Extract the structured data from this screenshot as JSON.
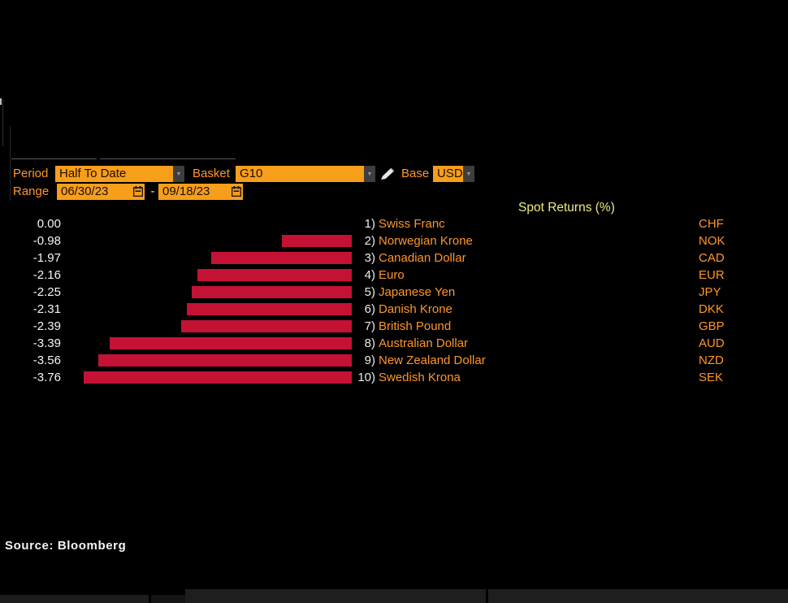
{
  "toolbar": {
    "period_label": "Period",
    "period_value": "Half To Date",
    "basket_label": "Basket",
    "basket_value": "G10",
    "base_label": "Base",
    "base_value": "USD",
    "range_label": "Range",
    "range_start": "06/30/23",
    "range_separator": "-",
    "range_end": "09/18/23"
  },
  "icons": {
    "dropdown_arrow": "▼"
  },
  "chart_data": {
    "type": "bar",
    "orientation": "horizontal",
    "title": "Spot Returns (%)",
    "categories": [
      "Swiss Franc",
      "Norwegian Krone",
      "Canadian Dollar",
      "Euro",
      "Japanese Yen",
      "Danish Krone",
      "British Pound",
      "Australian Dollar",
      "New Zealand Dollar",
      "Swedish Krona"
    ],
    "codes": [
      "CHF",
      "NOK",
      "CAD",
      "EUR",
      "JPY",
      "DKK",
      "GBP",
      "AUD",
      "NZD",
      "SEK"
    ],
    "ranks": [
      "1)",
      "2)",
      "3)",
      "4)",
      "5)",
      "6)",
      "7)",
      "8)",
      "9)",
      "10)"
    ],
    "values": [
      0.0,
      -0.98,
      -1.97,
      -2.16,
      -2.25,
      -2.31,
      -2.39,
      -3.39,
      -3.56,
      -3.76
    ],
    "value_labels": [
      "0.00",
      "-0.98",
      "-1.97",
      "-2.16",
      "-2.25",
      "-2.31",
      "-2.39",
      "-3.39",
      "-3.56",
      "-3.76"
    ],
    "xlim": [
      -3.76,
      0
    ],
    "grid": false,
    "bar_color": "#c41235"
  },
  "footer": {
    "source": "Source: Bloomberg"
  }
}
